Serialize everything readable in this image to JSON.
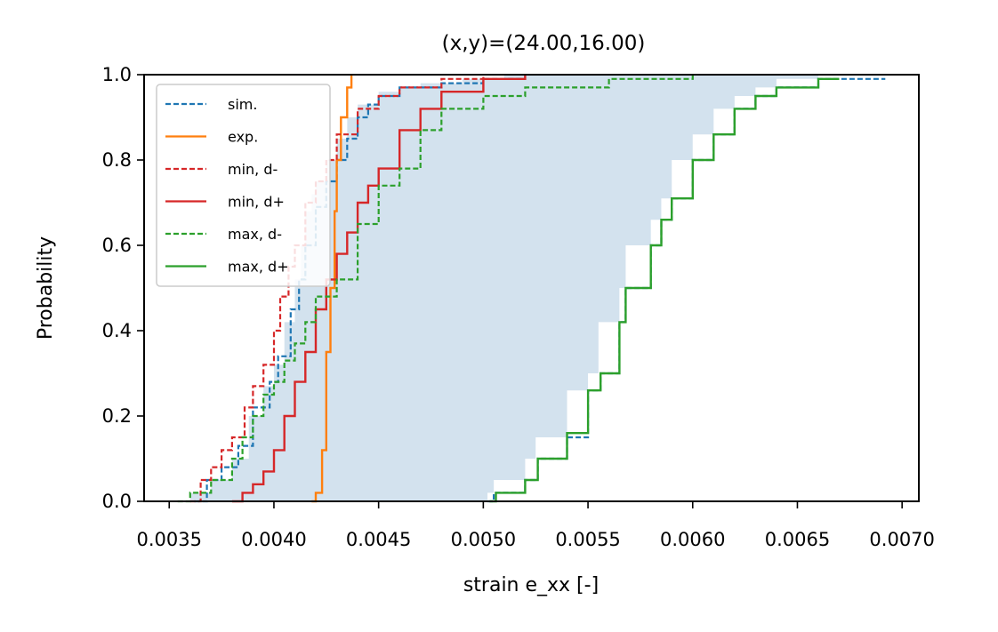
{
  "chart_data": {
    "type": "line",
    "title": "(x,y)=(24.00,16.00)",
    "xlabel": "strain e_xx [-]",
    "ylabel": "Probability",
    "xlim": [
      0.00338,
      0.00708
    ],
    "ylim": [
      0,
      1
    ],
    "xticks": [
      0.0035,
      0.004,
      0.0045,
      0.005,
      0.0055,
      0.006,
      0.0065,
      0.007
    ],
    "xtick_labels": [
      "0.0035",
      "0.0040",
      "0.0045",
      "0.0050",
      "0.0055",
      "0.0060",
      "0.0065",
      "0.0070"
    ],
    "yticks": [
      0,
      0.2,
      0.4,
      0.6,
      0.8,
      1.0
    ],
    "ytick_labels": [
      "0.0",
      "0.2",
      "0.4",
      "0.6",
      "0.8",
      "1.0"
    ],
    "grid": false,
    "legend_position": "upper-left",
    "fill_band": {
      "description_color": "#aecbe0",
      "left": [
        [
          0.00358,
          0.0
        ],
        [
          0.0036,
          0.02
        ],
        [
          0.0037,
          0.05
        ],
        [
          0.0038,
          0.1
        ],
        [
          0.00388,
          0.2
        ],
        [
          0.00395,
          0.27
        ],
        [
          0.004,
          0.32
        ],
        [
          0.00405,
          0.42
        ],
        [
          0.0041,
          0.52
        ],
        [
          0.00413,
          0.6
        ],
        [
          0.00415,
          0.68
        ],
        [
          0.00418,
          0.72
        ],
        [
          0.0042,
          0.75
        ],
        [
          0.00425,
          0.8
        ],
        [
          0.0043,
          0.85
        ],
        [
          0.00435,
          0.9
        ],
        [
          0.0044,
          0.93
        ],
        [
          0.0045,
          0.96
        ],
        [
          0.0046,
          0.97
        ],
        [
          0.0047,
          0.98
        ],
        [
          0.0049,
          0.99
        ],
        [
          0.0051,
          1.0
        ]
      ],
      "right": [
        [
          0.00502,
          0.0
        ],
        [
          0.00505,
          0.02
        ],
        [
          0.0052,
          0.05
        ],
        [
          0.00525,
          0.1
        ],
        [
          0.0054,
          0.15
        ],
        [
          0.0055,
          0.26
        ],
        [
          0.00555,
          0.3
        ],
        [
          0.00565,
          0.42
        ],
        [
          0.00568,
          0.5
        ],
        [
          0.0058,
          0.6
        ],
        [
          0.00585,
          0.66
        ],
        [
          0.0059,
          0.71
        ],
        [
          0.006,
          0.8
        ],
        [
          0.0061,
          0.86
        ],
        [
          0.0062,
          0.92
        ],
        [
          0.0063,
          0.95
        ],
        [
          0.0064,
          0.97
        ],
        [
          0.0066,
          0.99
        ],
        [
          0.0069,
          1.0
        ]
      ]
    },
    "series": [
      {
        "name": "sim.",
        "color": "#1f77b4",
        "dash": "dashed",
        "points": [
          [
            0.00362,
            0.0
          ],
          [
            0.00368,
            0.05
          ],
          [
            0.00375,
            0.08
          ],
          [
            0.00383,
            0.13
          ],
          [
            0.0039,
            0.22
          ],
          [
            0.00398,
            0.28
          ],
          [
            0.00402,
            0.34
          ],
          [
            0.00408,
            0.45
          ],
          [
            0.00412,
            0.52
          ],
          [
            0.00415,
            0.6
          ],
          [
            0.0042,
            0.69
          ],
          [
            0.00425,
            0.75
          ],
          [
            0.0043,
            0.8
          ],
          [
            0.00435,
            0.85
          ],
          [
            0.0044,
            0.9
          ],
          [
            0.00445,
            0.93
          ],
          [
            0.0045,
            0.95
          ],
          [
            0.0046,
            0.97
          ],
          [
            0.0048,
            0.98
          ],
          [
            0.005,
            0.99
          ],
          [
            0.0052,
            1.0
          ]
        ]
      },
      {
        "name": "sim.",
        "color": "#1f77b4",
        "dash": "dashed",
        "points": [
          [
            0.00502,
            0.0
          ],
          [
            0.00505,
            0.02
          ],
          [
            0.0052,
            0.05
          ],
          [
            0.00526,
            0.1
          ],
          [
            0.0054,
            0.15
          ],
          [
            0.0055,
            0.26
          ],
          [
            0.00556,
            0.3
          ],
          [
            0.00565,
            0.42
          ],
          [
            0.00568,
            0.5
          ],
          [
            0.0058,
            0.6
          ],
          [
            0.00585,
            0.66
          ],
          [
            0.0059,
            0.71
          ],
          [
            0.006,
            0.8
          ],
          [
            0.0061,
            0.86
          ],
          [
            0.0062,
            0.92
          ],
          [
            0.0063,
            0.95
          ],
          [
            0.0064,
            0.97
          ],
          [
            0.0066,
            0.99
          ],
          [
            0.00692,
            0.99
          ]
        ]
      },
      {
        "name": "exp.",
        "color": "#ff7f0e",
        "dash": "solid",
        "points": [
          [
            0.00418,
            0.0
          ],
          [
            0.0042,
            0.02
          ],
          [
            0.00423,
            0.12
          ],
          [
            0.00425,
            0.35
          ],
          [
            0.00427,
            0.5
          ],
          [
            0.00429,
            0.68
          ],
          [
            0.0043,
            0.8
          ],
          [
            0.00432,
            0.9
          ],
          [
            0.00435,
            0.97
          ],
          [
            0.00437,
            1.0
          ]
        ]
      },
      {
        "name": "min, d-",
        "color": "#d62728",
        "dash": "dashed",
        "points": [
          [
            0.0036,
            0.0
          ],
          [
            0.00365,
            0.05
          ],
          [
            0.0037,
            0.08
          ],
          [
            0.00375,
            0.12
          ],
          [
            0.0038,
            0.15
          ],
          [
            0.00386,
            0.22
          ],
          [
            0.0039,
            0.27
          ],
          [
            0.00395,
            0.32
          ],
          [
            0.004,
            0.4
          ],
          [
            0.00403,
            0.48
          ],
          [
            0.00407,
            0.55
          ],
          [
            0.0041,
            0.6
          ],
          [
            0.00415,
            0.7
          ],
          [
            0.0042,
            0.75
          ],
          [
            0.00425,
            0.8
          ],
          [
            0.0043,
            0.86
          ],
          [
            0.0044,
            0.92
          ],
          [
            0.0045,
            0.95
          ],
          [
            0.0046,
            0.97
          ],
          [
            0.0048,
            0.99
          ],
          [
            0.005,
            1.0
          ]
        ]
      },
      {
        "name": "min, d+",
        "color": "#d62728",
        "dash": "solid",
        "points": [
          [
            0.0038,
            0.0
          ],
          [
            0.00385,
            0.02
          ],
          [
            0.0039,
            0.04
          ],
          [
            0.00395,
            0.07
          ],
          [
            0.004,
            0.12
          ],
          [
            0.00405,
            0.2
          ],
          [
            0.0041,
            0.28
          ],
          [
            0.00415,
            0.35
          ],
          [
            0.0042,
            0.45
          ],
          [
            0.00425,
            0.52
          ],
          [
            0.0043,
            0.58
          ],
          [
            0.00435,
            0.63
          ],
          [
            0.0044,
            0.7
          ],
          [
            0.00445,
            0.74
          ],
          [
            0.0045,
            0.78
          ],
          [
            0.0046,
            0.87
          ],
          [
            0.0047,
            0.92
          ],
          [
            0.0048,
            0.96
          ],
          [
            0.005,
            0.99
          ],
          [
            0.0052,
            1.0
          ]
        ]
      },
      {
        "name": "max, d-",
        "color": "#2ca02c",
        "dash": "dashed",
        "points": [
          [
            0.00354,
            0.0
          ],
          [
            0.0036,
            0.02
          ],
          [
            0.0037,
            0.05
          ],
          [
            0.0038,
            0.1
          ],
          [
            0.00385,
            0.15
          ],
          [
            0.0039,
            0.2
          ],
          [
            0.00395,
            0.25
          ],
          [
            0.004,
            0.28
          ],
          [
            0.00405,
            0.33
          ],
          [
            0.0041,
            0.37
          ],
          [
            0.00415,
            0.42
          ],
          [
            0.0042,
            0.48
          ],
          [
            0.0043,
            0.52
          ],
          [
            0.0044,
            0.65
          ],
          [
            0.0045,
            0.74
          ],
          [
            0.0046,
            0.78
          ],
          [
            0.0047,
            0.87
          ],
          [
            0.0048,
            0.92
          ],
          [
            0.005,
            0.95
          ],
          [
            0.0052,
            0.97
          ],
          [
            0.0056,
            0.99
          ],
          [
            0.006,
            1.0
          ]
        ]
      },
      {
        "name": "max, d+",
        "color": "#2ca02c",
        "dash": "solid",
        "points": [
          [
            0.00503,
            0.0
          ],
          [
            0.00506,
            0.02
          ],
          [
            0.0052,
            0.05
          ],
          [
            0.00526,
            0.1
          ],
          [
            0.0054,
            0.16
          ],
          [
            0.0055,
            0.26
          ],
          [
            0.00556,
            0.3
          ],
          [
            0.00565,
            0.42
          ],
          [
            0.00568,
            0.5
          ],
          [
            0.0058,
            0.6
          ],
          [
            0.00585,
            0.66
          ],
          [
            0.0059,
            0.71
          ],
          [
            0.006,
            0.8
          ],
          [
            0.0061,
            0.86
          ],
          [
            0.0062,
            0.92
          ],
          [
            0.0063,
            0.95
          ],
          [
            0.0064,
            0.97
          ],
          [
            0.0066,
            0.99
          ],
          [
            0.0067,
            0.99
          ]
        ]
      }
    ],
    "legend": [
      "sim.",
      "exp.",
      "min, d-",
      "min, d+",
      "max, d-",
      "max, d+"
    ]
  }
}
